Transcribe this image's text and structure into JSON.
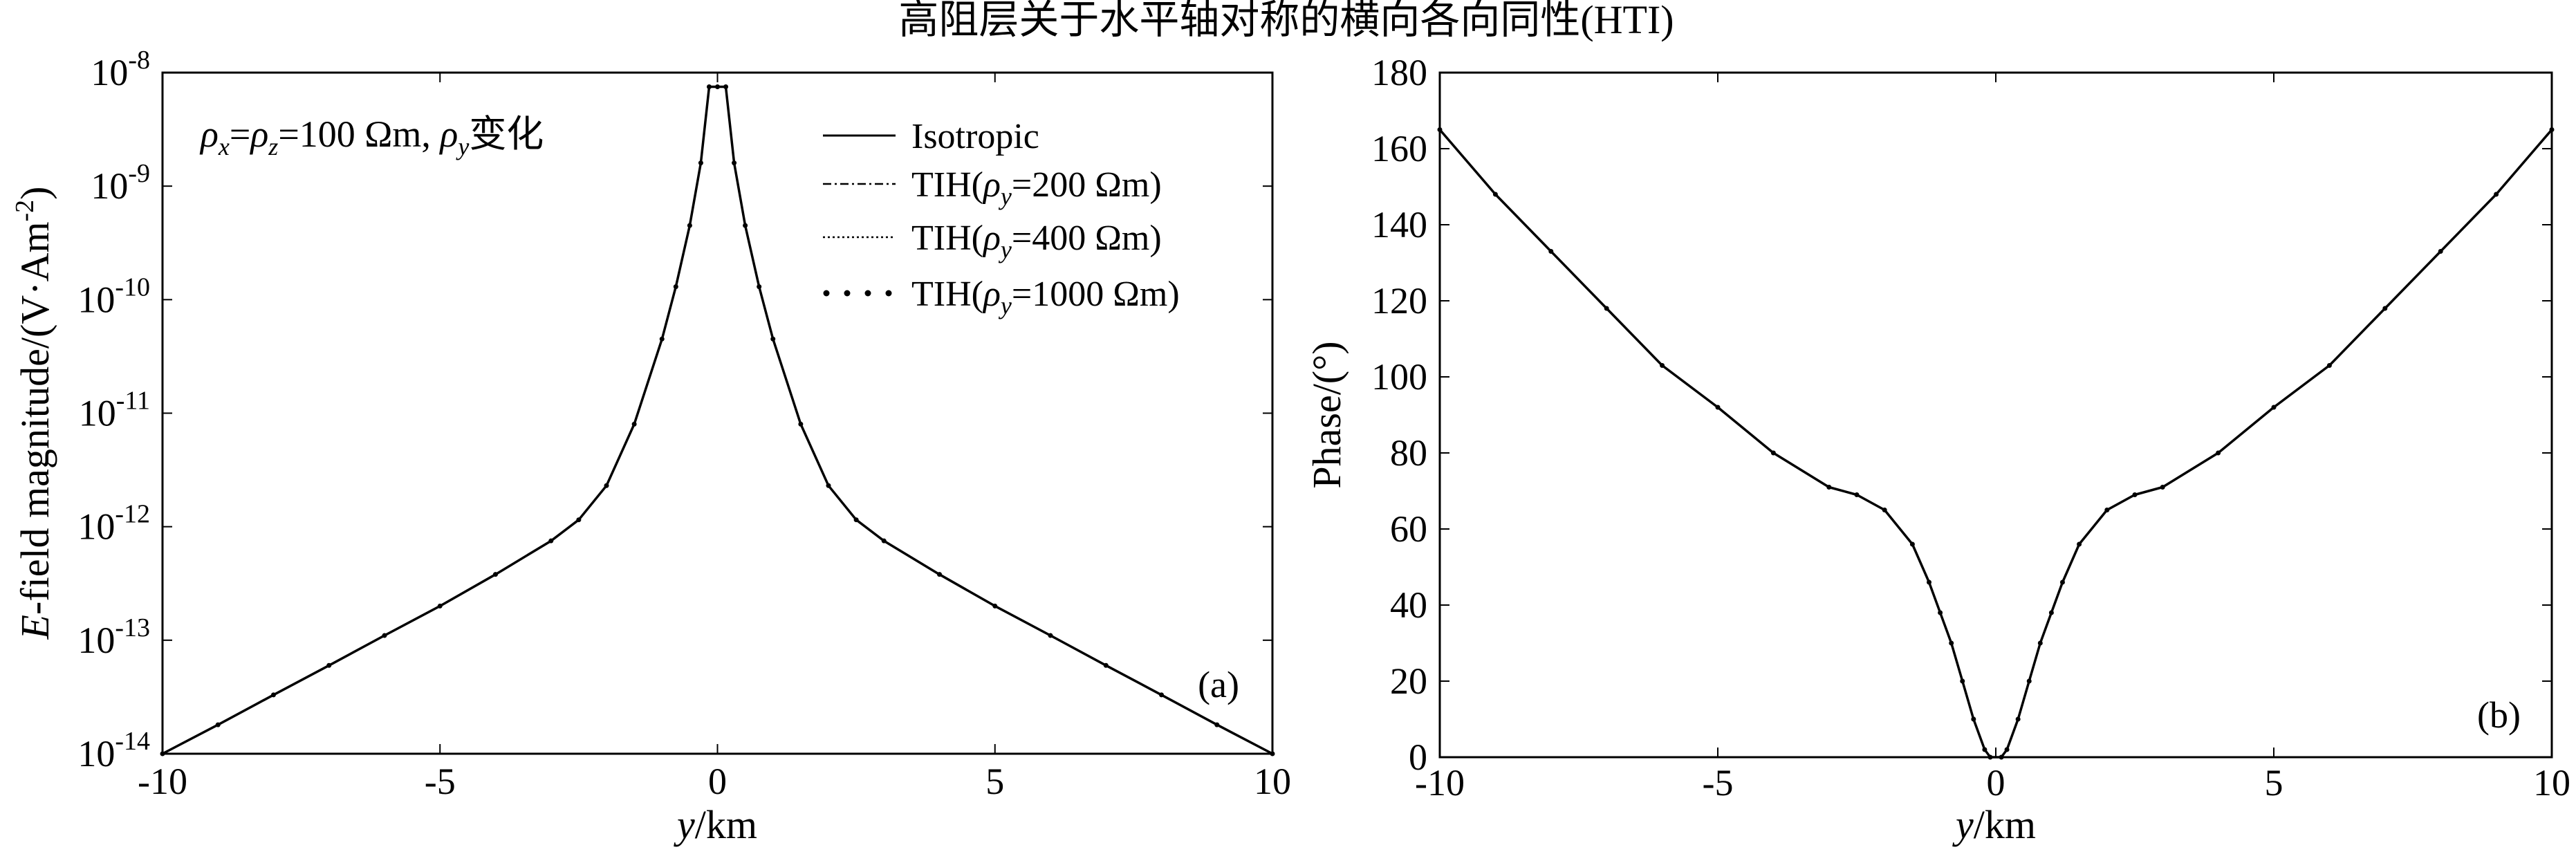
{
  "figure": {
    "title": "高阻层关于水平轴对称的横向各向同性(HTI)"
  },
  "chart_data": [
    {
      "type": "line",
      "panel_label": "(a)",
      "title": "",
      "xlabel_italic": "y",
      "xlabel_rest": "/km",
      "ylabel_italic": "E",
      "ylabel_rest": "-field magnitude/(V·Am",
      "ylabel_sup": "-2",
      "ylabel_close": ")",
      "yscale": "log",
      "xlim": [
        -10,
        10
      ],
      "ylim": [
        1e-14,
        1e-08
      ],
      "x_ticks": [
        "-10",
        "-5",
        "0",
        "5",
        "10"
      ],
      "x_tick_values": [
        -10,
        -5,
        0,
        5,
        10
      ],
      "y_ticks": [
        {
          "base": "10",
          "exp": "-14",
          "value": 1e-14
        },
        {
          "base": "10",
          "exp": "-13",
          "value": 1e-13
        },
        {
          "base": "10",
          "exp": "-12",
          "value": 1e-12
        },
        {
          "base": "10",
          "exp": "-11",
          "value": 1e-11
        },
        {
          "base": "10",
          "exp": "-10",
          "value": 1e-10
        },
        {
          "base": "10",
          "exp": "-9",
          "value": 1e-09
        },
        {
          "base": "10",
          "exp": "-8",
          "value": 1e-08
        }
      ],
      "annotation": {
        "rho": "ρ",
        "sub_x": "x",
        "eq": "=",
        "sub_z": "z",
        "value": "=100 Ωm, ",
        "sub_y": "y",
        "suffix": "变化"
      },
      "legend": {
        "placement": "top-right",
        "entries": [
          {
            "name": "Isotropic",
            "style": "solid"
          },
          {
            "name_pre": "TIH(",
            "name_rho": "ρ",
            "name_sub": "y",
            "name_post": "=200 Ωm)",
            "style": "dashdot"
          },
          {
            "name_pre": "TIH(",
            "name_rho": "ρ",
            "name_sub": "y",
            "name_post": "=400 Ωm)",
            "style": "dotted"
          },
          {
            "name_pre": "TIH(",
            "name_rho": "ρ",
            "name_sub": "y",
            "name_post": "=1000 Ωm)",
            "style": "dots"
          }
        ]
      },
      "x": [
        -10,
        -9,
        -8,
        -7,
        -6,
        -5,
        -4,
        -3,
        -2.5,
        -2,
        -1.5,
        -1,
        -0.75,
        -0.5,
        -0.3,
        -0.15,
        0,
        0.15,
        0.3,
        0.5,
        0.75,
        1,
        1.5,
        2,
        2.5,
        3,
        4,
        5,
        6,
        7,
        8,
        9,
        10
      ],
      "series": [
        {
          "name": "Isotropic",
          "values": [
            1e-14,
            1.8e-14,
            3.3e-14,
            6e-14,
            1.1e-13,
            2e-13,
            3.8e-13,
            7.5e-13,
            1.15e-12,
            2.3e-12,
            8e-12,
            4.5e-11,
            1.3e-10,
            4.5e-10,
            1.6e-09,
            7.5e-09,
            7.5e-09,
            7.5e-09,
            1.6e-09,
            4.5e-10,
            1.3e-10,
            4.5e-11,
            8e-12,
            2.3e-12,
            1.15e-12,
            7.5e-13,
            3.8e-13,
            2e-13,
            1.1e-13,
            6e-14,
            3.3e-14,
            1.8e-14,
            1e-14
          ]
        }
      ],
      "grid": false
    },
    {
      "type": "line",
      "panel_label": "(b)",
      "title": "",
      "xlabel_italic": "y",
      "xlabel_rest": "/km",
      "ylabel": "Phase/(°)",
      "xlim": [
        -10,
        10
      ],
      "ylim": [
        0,
        180
      ],
      "x_ticks": [
        "-10",
        "-5",
        "0",
        "5",
        "10"
      ],
      "x_tick_values": [
        -10,
        -5,
        0,
        5,
        10
      ],
      "y_ticks": [
        "0",
        "20",
        "40",
        "60",
        "80",
        "100",
        "120",
        "140",
        "160",
        "180"
      ],
      "y_tick_values": [
        0,
        20,
        40,
        60,
        80,
        100,
        120,
        140,
        160,
        180
      ],
      "x": [
        -10,
        -9,
        -8,
        -7,
        -6,
        -5,
        -4,
        -3,
        -2.5,
        -2,
        -1.5,
        -1.2,
        -1,
        -0.8,
        -0.6,
        -0.4,
        -0.2,
        -0.1,
        0.1,
        0.2,
        0.4,
        0.6,
        0.8,
        1,
        1.2,
        1.5,
        2,
        2.5,
        3,
        4,
        5,
        6,
        7,
        8,
        9,
        10
      ],
      "series": [
        {
          "name": "Isotropic",
          "values": [
            165,
            148,
            133,
            118,
            103,
            92,
            80,
            71,
            69,
            65,
            56,
            46,
            38,
            30,
            20,
            10,
            2,
            0,
            0,
            2,
            10,
            20,
            30,
            38,
            46,
            56,
            65,
            69,
            71,
            80,
            92,
            103,
            118,
            133,
            148,
            165
          ]
        }
      ],
      "grid": false
    }
  ]
}
